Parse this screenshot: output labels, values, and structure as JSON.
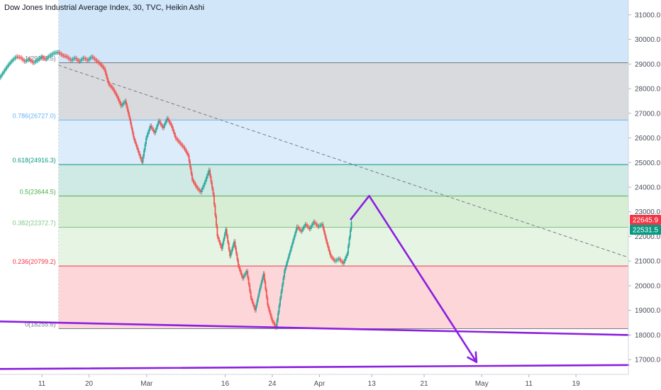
{
  "header": {
    "title": "Dow Jones Industrial Average Index, 30, TVC, Heikin Ashi"
  },
  "chart_data": {
    "type": "candlestick",
    "title": "Dow Jones Industrial Average Index, 30, TVC, Heikin Ashi",
    "y_axis": {
      "side": "right",
      "ylim": [
        16400,
        31600
      ],
      "ticks": [
        17000,
        18000,
        19000,
        20000,
        21000,
        22000,
        23000,
        24000,
        25000,
        26000,
        27000,
        28000,
        29000,
        30000,
        31000
      ],
      "tick_labels": [
        "17000.0",
        "18000.0",
        "19000.0",
        "20000.0",
        "21000.0",
        "22000.0",
        "23000.0",
        "24000.0",
        "25000.0",
        "26000.0",
        "27000.0",
        "28000.0",
        "29000.0",
        "30000.0",
        "31000.0"
      ]
    },
    "x_axis": {
      "xlim": [
        0,
        120
      ],
      "ticks": [
        {
          "x": 8,
          "label": "11"
        },
        {
          "x": 17,
          "label": "20"
        },
        {
          "x": 28,
          "label": "Mar"
        },
        {
          "x": 43,
          "label": "16"
        },
        {
          "x": 52,
          "label": "24"
        },
        {
          "x": 61,
          "label": "Apr"
        },
        {
          "x": 71,
          "label": "13"
        },
        {
          "x": 81,
          "label": "21"
        },
        {
          "x": 92,
          "label": "May"
        },
        {
          "x": 101,
          "label": "11"
        },
        {
          "x": 110,
          "label": "19"
        }
      ]
    },
    "fibonacci": {
      "x_start": 11.2,
      "levels": [
        {
          "ratio": "1",
          "value": 29053.5,
          "label": "1(29053.5)",
          "line_color": "#787b86",
          "text_color": "#787b86",
          "fill": "#d9dadd"
        },
        {
          "ratio": "0.786",
          "value": 26727.0,
          "label": "0.786(26727.0)",
          "line_color": "#64b5f6",
          "text_color": "#64b5f6",
          "fill": "#dcecfb"
        },
        {
          "ratio": "0.618",
          "value": 24916.3,
          "label": "0.618(24916.3)",
          "line_color": "#089981",
          "text_color": "#089981",
          "fill": "#cfe9e4"
        },
        {
          "ratio": "0.5",
          "value": 23644.5,
          "label": "0.5(23644.5)",
          "line_color": "#4caf50",
          "text_color": "#4caf50",
          "fill": "#d7eed5"
        },
        {
          "ratio": "0.382",
          "value": 22372.7,
          "label": "0.382(22372.7)",
          "line_color": "#81c784",
          "text_color": "#81c784",
          "fill": "#e6f4e4"
        },
        {
          "ratio": "0.236",
          "value": 20799.2,
          "label": "0.236(20799.2)",
          "line_color": "#f23645",
          "text_color": "#f23645",
          "fill": "#fcd6d8"
        },
        {
          "ratio": "0",
          "value": 18255.6,
          "label": "0(18255.6)",
          "line_color": "#787b86",
          "text_color": "#787b86",
          "fill": null
        }
      ],
      "extension_above": {
        "fill": "#d2e6fa"
      }
    },
    "price_tags": [
      {
        "value": 22645.9,
        "label": "22645.9",
        "color": "#f23645"
      },
      {
        "value": 22531.5,
        "label": "22531.5",
        "color": "#089981"
      }
    ],
    "series_close": [
      {
        "x": 0.0,
        "y": 28440
      },
      {
        "x": 0.8,
        "y": 28700
      },
      {
        "x": 1.6,
        "y": 28950
      },
      {
        "x": 2.4,
        "y": 29150
      },
      {
        "x": 3.2,
        "y": 29300
      },
      {
        "x": 4.0,
        "y": 29260
      },
      {
        "x": 4.8,
        "y": 29100
      },
      {
        "x": 5.6,
        "y": 29200
      },
      {
        "x": 6.4,
        "y": 29050
      },
      {
        "x": 7.2,
        "y": 29150
      },
      {
        "x": 8.0,
        "y": 29300
      },
      {
        "x": 8.8,
        "y": 29200
      },
      {
        "x": 9.6,
        "y": 29350
      },
      {
        "x": 10.4,
        "y": 29450
      },
      {
        "x": 11.2,
        "y": 29480
      },
      {
        "x": 12.0,
        "y": 29350
      },
      {
        "x": 12.8,
        "y": 29300
      },
      {
        "x": 13.6,
        "y": 29150
      },
      {
        "x": 14.4,
        "y": 29250
      },
      {
        "x": 15.2,
        "y": 29100
      },
      {
        "x": 16.0,
        "y": 29250
      },
      {
        "x": 16.8,
        "y": 29150
      },
      {
        "x": 17.6,
        "y": 29300
      },
      {
        "x": 18.4,
        "y": 29150
      },
      {
        "x": 19.2,
        "y": 29000
      },
      {
        "x": 20.0,
        "y": 28800
      },
      {
        "x": 20.8,
        "y": 28200
      },
      {
        "x": 21.6,
        "y": 28000
      },
      {
        "x": 22.4,
        "y": 27700
      },
      {
        "x": 23.2,
        "y": 27300
      },
      {
        "x": 24.0,
        "y": 27500
      },
      {
        "x": 24.8,
        "y": 26800
      },
      {
        "x": 25.6,
        "y": 26000
      },
      {
        "x": 26.4,
        "y": 25500
      },
      {
        "x": 27.2,
        "y": 25000
      },
      {
        "x": 28.0,
        "y": 26000
      },
      {
        "x": 28.8,
        "y": 26500
      },
      {
        "x": 29.6,
        "y": 26200
      },
      {
        "x": 30.4,
        "y": 26700
      },
      {
        "x": 31.2,
        "y": 26400
      },
      {
        "x": 32.0,
        "y": 26800
      },
      {
        "x": 32.8,
        "y": 26500
      },
      {
        "x": 33.6,
        "y": 26000
      },
      {
        "x": 34.4,
        "y": 25800
      },
      {
        "x": 35.2,
        "y": 25600
      },
      {
        "x": 36.0,
        "y": 25300
      },
      {
        "x": 36.8,
        "y": 24300
      },
      {
        "x": 37.6,
        "y": 24000
      },
      {
        "x": 38.4,
        "y": 23800
      },
      {
        "x": 39.2,
        "y": 24200
      },
      {
        "x": 40.0,
        "y": 24700
      },
      {
        "x": 40.8,
        "y": 23700
      },
      {
        "x": 41.6,
        "y": 22000
      },
      {
        "x": 42.4,
        "y": 21500
      },
      {
        "x": 43.2,
        "y": 22300
      },
      {
        "x": 44.0,
        "y": 21200
      },
      {
        "x": 44.8,
        "y": 21800
      },
      {
        "x": 45.6,
        "y": 20800
      },
      {
        "x": 46.4,
        "y": 20300
      },
      {
        "x": 47.2,
        "y": 20600
      },
      {
        "x": 48.0,
        "y": 19500
      },
      {
        "x": 48.8,
        "y": 19000
      },
      {
        "x": 49.6,
        "y": 19800
      },
      {
        "x": 50.4,
        "y": 20500
      },
      {
        "x": 51.2,
        "y": 19200
      },
      {
        "x": 52.0,
        "y": 18600
      },
      {
        "x": 52.8,
        "y": 18300
      },
      {
        "x": 53.6,
        "y": 19500
      },
      {
        "x": 54.4,
        "y": 20600
      },
      {
        "x": 55.2,
        "y": 21200
      },
      {
        "x": 56.0,
        "y": 21800
      },
      {
        "x": 56.8,
        "y": 22400
      },
      {
        "x": 57.6,
        "y": 22200
      },
      {
        "x": 58.4,
        "y": 22500
      },
      {
        "x": 59.2,
        "y": 22300
      },
      {
        "x": 60.0,
        "y": 22600
      },
      {
        "x": 60.8,
        "y": 22400
      },
      {
        "x": 61.6,
        "y": 22500
      },
      {
        "x": 62.4,
        "y": 21800
      },
      {
        "x": 63.2,
        "y": 21200
      },
      {
        "x": 64.0,
        "y": 21000
      },
      {
        "x": 64.8,
        "y": 21100
      },
      {
        "x": 65.6,
        "y": 20900
      },
      {
        "x": 66.4,
        "y": 21300
      },
      {
        "x": 67.2,
        "y": 22600
      }
    ],
    "drawings": [
      {
        "name": "dashed-trendline",
        "color": "#787b86",
        "dash": true,
        "points": [
          {
            "x": 11.2,
            "y": 28950
          },
          {
            "x": 120,
            "y": 21150
          }
        ]
      },
      {
        "name": "projection-arrow",
        "color": "#8b1fe0",
        "points": [
          {
            "x": 67.0,
            "y": 22700
          },
          {
            "x": 70.5,
            "y": 23650
          },
          {
            "x": 91.0,
            "y": 16900
          }
        ],
        "arrow_end": true
      },
      {
        "name": "support-line-upper",
        "color": "#8b1fe0",
        "points": [
          {
            "x": 0,
            "y": 18550
          },
          {
            "x": 120,
            "y": 18000
          }
        ]
      },
      {
        "name": "support-line-lower",
        "color": "#8b1fe0",
        "points": [
          {
            "x": 0,
            "y": 16620
          },
          {
            "x": 120,
            "y": 16780
          }
        ]
      }
    ],
    "grid": false,
    "legend": "none"
  }
}
